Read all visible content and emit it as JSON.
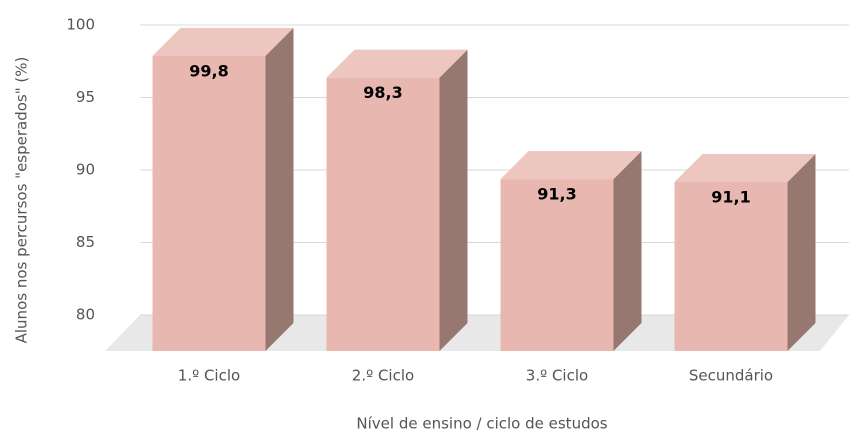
{
  "chart_data": {
    "type": "bar3d",
    "y_label": "Alunos nos percursos \"esperados\" (%)",
    "x_label": "Nível de ensino / ciclo de estudos",
    "categories": [
      "1.º Ciclo",
      "2.º Ciclo",
      "3.º Ciclo",
      "Secundário"
    ],
    "values": [
      99.8,
      98.3,
      91.3,
      91.1
    ],
    "value_labels": [
      "99,8",
      "98,3",
      "91,3",
      "91,1"
    ],
    "color": "#e8b8b0",
    "ylim": [
      80,
      100
    ],
    "yticks": [
      80,
      85,
      90,
      95,
      100
    ],
    "grid": true
  }
}
